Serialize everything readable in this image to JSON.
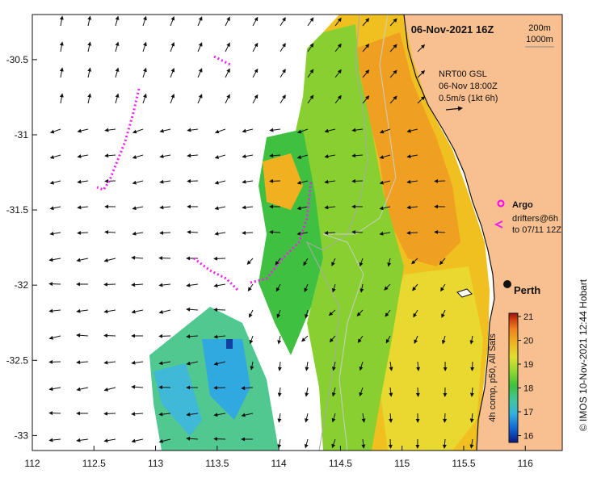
{
  "title": "06-Nov-2021 16Z",
  "scale_bar": {
    "label1": "200m",
    "label2": "1000m"
  },
  "currents_legend": {
    "line1": "NRT00 GSL",
    "line2": "06-Nov 18:00Z",
    "line3": "0.5m/s (1kt 6h)"
  },
  "argo_label": "Argo",
  "drifters_line1": "drifters@6h",
  "drifters_line2": "to 07/11 12Z",
  "city_label": "Perth",
  "colorbar": {
    "ticks": [
      "21",
      "20",
      "19",
      "18",
      "17",
      "16"
    ],
    "caption": "4h comp, p50, All Sats",
    "colors": [
      "#0a1a80",
      "#1060d0",
      "#30b0e0",
      "#40c8a0",
      "#40c040",
      "#90d830",
      "#e0e030",
      "#f0b020",
      "#f08020",
      "#d04010",
      "#a01010"
    ]
  },
  "credit": "© IMOS 10-Nov-2021 12:44 Hobart",
  "axis": {
    "x_ticks": [
      {
        "value": 112,
        "label": "112"
      },
      {
        "value": 112.5,
        "label": "112.5"
      },
      {
        "value": 113,
        "label": "113"
      },
      {
        "value": 113.5,
        "label": "113.5"
      },
      {
        "value": 114,
        "label": "114"
      },
      {
        "value": 114.5,
        "label": "114.5"
      },
      {
        "value": 115,
        "label": "115"
      },
      {
        "value": 115.5,
        "label": "115.5"
      },
      {
        "value": 116,
        "label": "116"
      }
    ],
    "y_ticks": [
      {
        "value": -30.5,
        "label": "-30.5"
      },
      {
        "value": -31,
        "label": "-31"
      },
      {
        "value": -31.5,
        "label": "-31.5"
      },
      {
        "value": -32,
        "label": "-32"
      },
      {
        "value": -32.5,
        "label": "-32.5"
      },
      {
        "value": -33,
        "label": "-33"
      }
    ]
  },
  "colors": {
    "land": "#f8c090",
    "ocean": "#ffffff",
    "argo": "#ff00ff",
    "drifter": "#ee22ee",
    "arrows": "#111111"
  }
}
